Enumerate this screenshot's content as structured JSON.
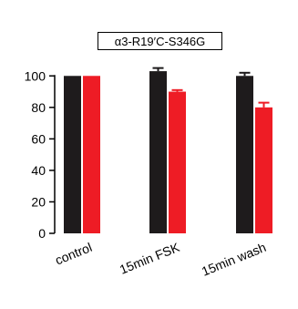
{
  "chart_data": {
    "type": "bar",
    "title": "α3-R19′C-S346G",
    "categories": [
      "control",
      "15min FSK",
      "15min wash"
    ],
    "series": [
      {
        "color": "#1e1b1c",
        "values": [
          100,
          103,
          100
        ],
        "errors": [
          0,
          2,
          2
        ]
      },
      {
        "color": "#ee1c25",
        "values": [
          100,
          90,
          80
        ],
        "errors": [
          0,
          1,
          3
        ]
      }
    ],
    "ylim": [
      0,
      110
    ],
    "yticks": [
      0,
      20,
      40,
      60,
      80,
      100
    ],
    "ytick_labels": [
      "0",
      "20",
      "40",
      "60",
      "80",
      "100"
    ],
    "xlabel": "",
    "ylabel": "",
    "grid": false,
    "legend": "none"
  }
}
